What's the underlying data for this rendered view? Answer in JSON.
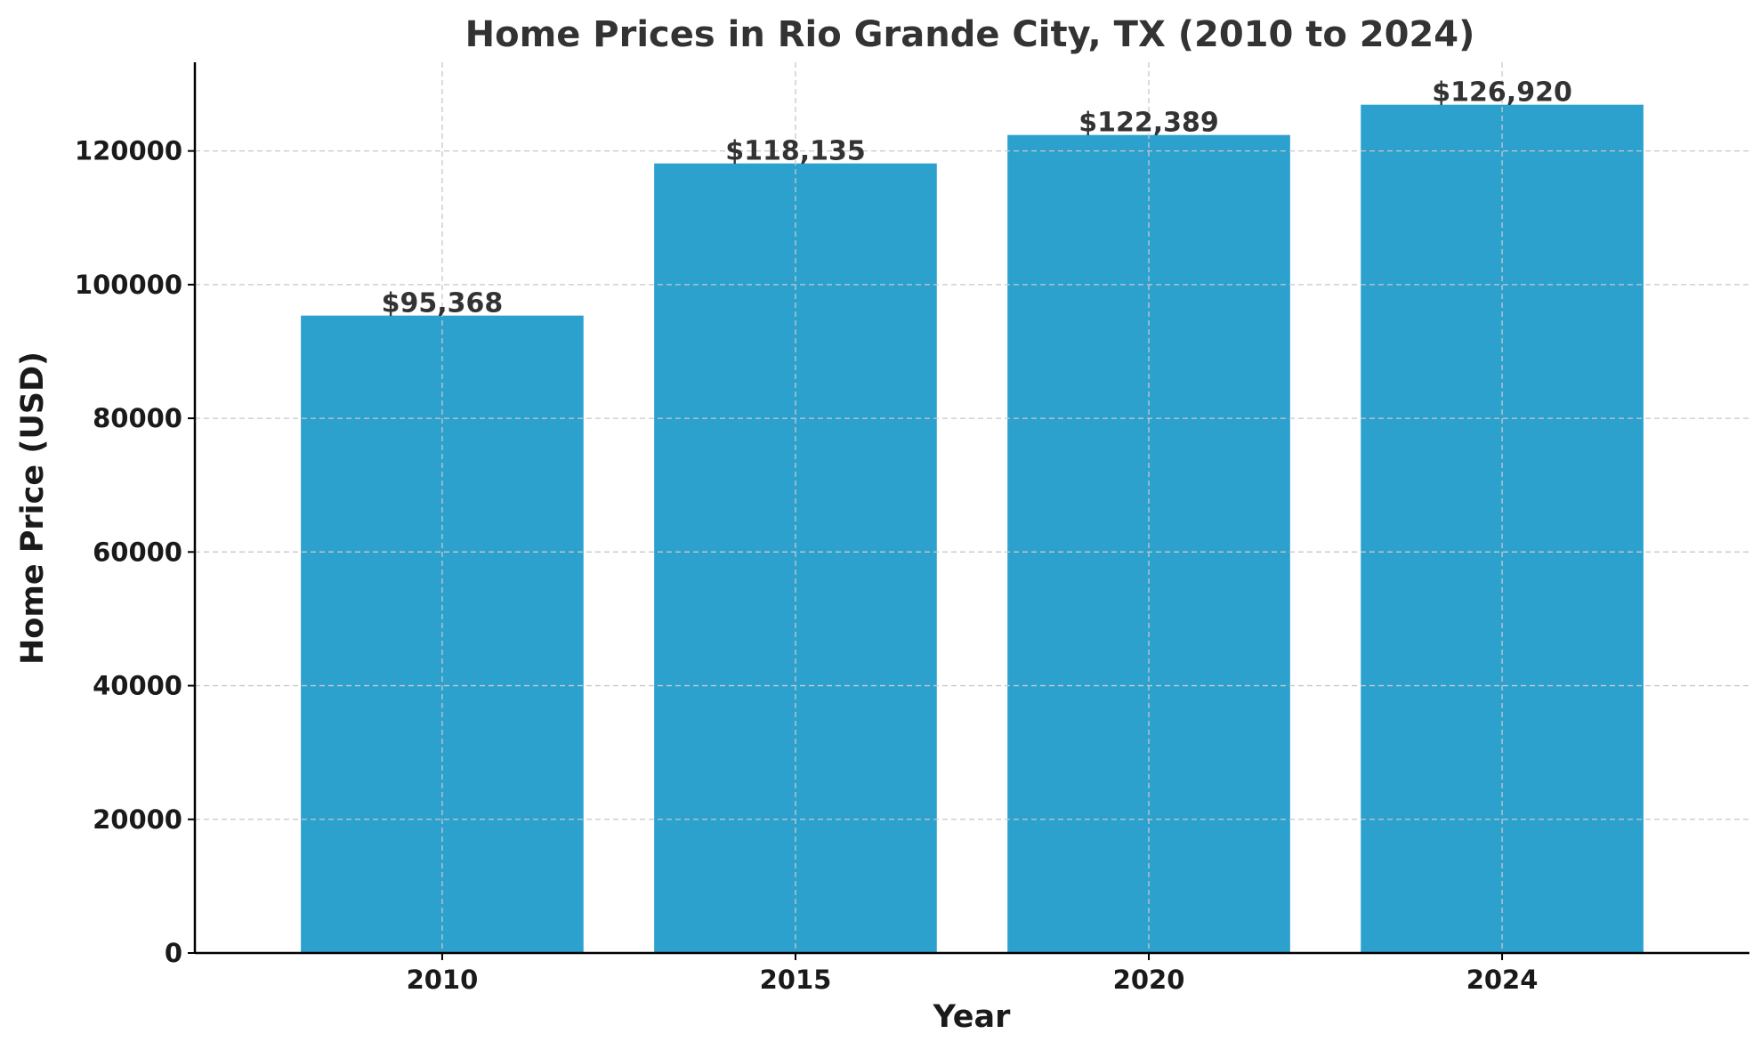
{
  "chart_data": {
    "type": "bar",
    "title": "Home Prices in Rio Grande City, TX (2010 to 2024)",
    "xlabel": "Year",
    "ylabel": "Home Price (USD)",
    "categories": [
      "2010",
      "2015",
      "2020",
      "2024"
    ],
    "values": [
      95368,
      118135,
      122389,
      126920
    ],
    "data_labels": [
      "$95,368",
      "$118,135",
      "$122,389",
      "$126,920"
    ],
    "yticks": [
      0,
      20000,
      40000,
      60000,
      80000,
      100000,
      120000
    ],
    "ytick_labels": [
      "0",
      "20000",
      "40000",
      "60000",
      "80000",
      "100000",
      "120000"
    ],
    "ylim": [
      0,
      133266
    ],
    "grid": true,
    "bar_color": "#2ca1ce"
  }
}
